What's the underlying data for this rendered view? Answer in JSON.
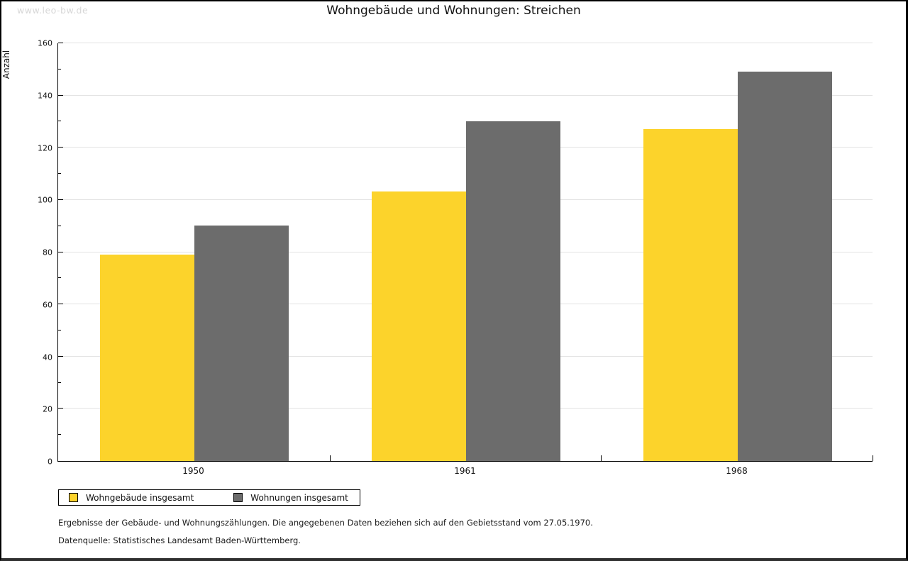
{
  "watermark": "www.leo-bw.de",
  "title": "Wohngebäude und Wohnungen: Streichen",
  "chart_data": {
    "type": "bar",
    "title": "Wohngebäude und Wohnungen: Streichen",
    "categories": [
      "1950",
      "1961",
      "1968"
    ],
    "series": [
      {
        "name": "Wohngebäude insgesamt",
        "color": "#FCD32B",
        "values": [
          79,
          103,
          127
        ]
      },
      {
        "name": "Wohnungen insgesamt",
        "color": "#6C6C6C",
        "values": [
          90,
          130,
          149
        ]
      }
    ],
    "xlabel": "",
    "ylabel": "Anzahl",
    "ylim": [
      0,
      160
    ],
    "y_major_step": 20,
    "y_minor_step": 10,
    "grid": true,
    "gridline_color": "#E3E3E3",
    "legend_position": "bottom-left"
  },
  "footer": {
    "line1": "Ergebnisse der Gebäude- und Wohnungszählungen. Die angegebenen Daten beziehen sich auf den Gebietsstand vom 27.05.1970.",
    "line2": "Datenquelle: Statistisches Landesamt Baden-Württemberg."
  }
}
